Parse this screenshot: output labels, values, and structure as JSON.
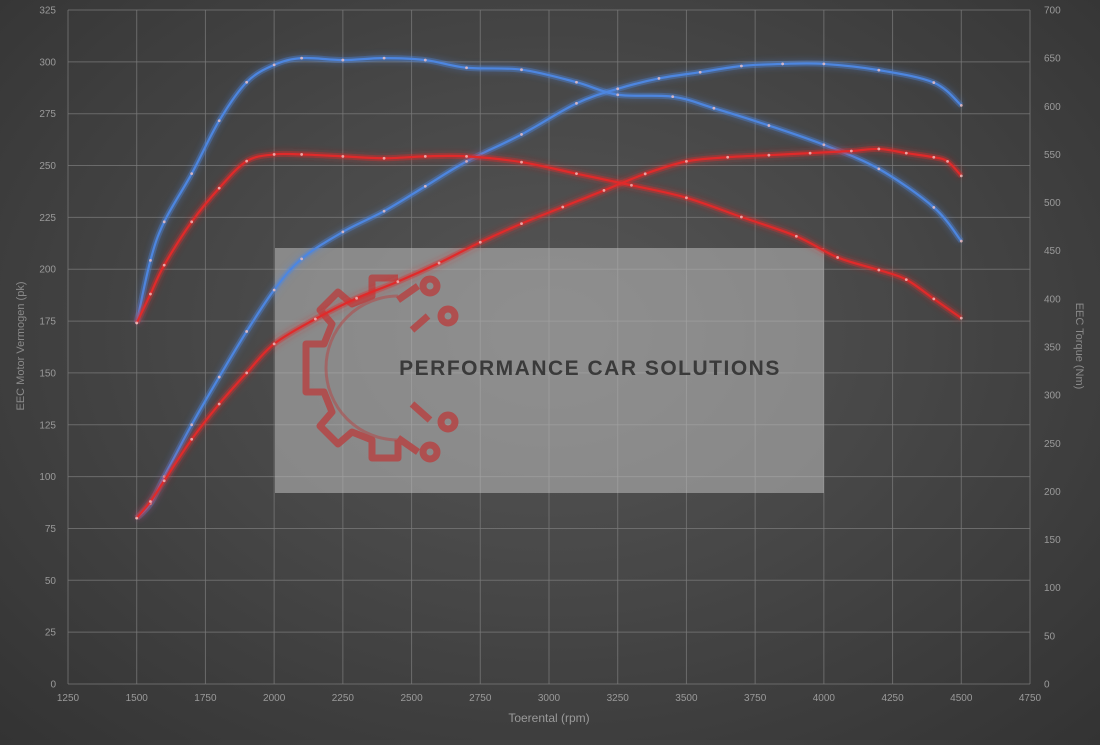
{
  "watermark": {
    "text": "PERFORMANCE CAR SOLUTIONS",
    "logo": "gear-circuit-logo"
  },
  "colors": {
    "blue": "#4d86e0",
    "red": "#e02a2a",
    "grid": "#7a7a7a",
    "axis_text": "#9a9a9a"
  },
  "chart_data": {
    "type": "line",
    "xlabel": "Toerental (rpm)",
    "ylabel": "EEC Motor Vermogen (pk)",
    "y2label": "EEC Torque (Nm)",
    "xlim": [
      1250,
      4750
    ],
    "ylim": [
      0,
      325
    ],
    "y2lim": [
      0,
      700
    ],
    "xticks": [
      1250,
      1500,
      1750,
      2000,
      2250,
      2500,
      2750,
      3000,
      3250,
      3500,
      3750,
      4000,
      4250,
      4500,
      4750
    ],
    "yticks": [
      0,
      25,
      50,
      75,
      100,
      125,
      150,
      175,
      200,
      225,
      250,
      275,
      300,
      325
    ],
    "y2ticks": [
      0,
      50,
      100,
      150,
      200,
      250,
      300,
      350,
      400,
      450,
      500,
      550,
      600,
      650,
      700
    ],
    "grid": true,
    "series": [
      {
        "color": "blue",
        "axis": "y2",
        "x": [
          1500,
          1550,
          1600,
          1700,
          1800,
          1900,
          2000,
          2100,
          2250,
          2400,
          2550,
          2700,
          2900,
          3100,
          3250,
          3450,
          3600,
          3800,
          4000,
          4200,
          4400,
          4500
        ],
        "y": [
          375,
          440,
          480,
          530,
          585,
          625,
          643,
          650,
          648,
          650,
          648,
          640,
          638,
          625,
          612,
          610,
          598,
          580,
          560,
          535,
          495,
          460
        ]
      },
      {
        "color": "blue",
        "axis": "y",
        "x": [
          1500,
          1550,
          1600,
          1700,
          1800,
          1900,
          2000,
          2100,
          2250,
          2400,
          2550,
          2700,
          2900,
          3100,
          3250,
          3400,
          3550,
          3700,
          3850,
          4000,
          4200,
          4400,
          4500
        ],
        "y": [
          80,
          87,
          100,
          125,
          148,
          170,
          190,
          205,
          218,
          228,
          240,
          252,
          265,
          280,
          287,
          292,
          295,
          298,
          299,
          299,
          296,
          290,
          279
        ]
      },
      {
        "color": "red",
        "axis": "y2",
        "x": [
          1500,
          1550,
          1600,
          1700,
          1800,
          1900,
          2000,
          2100,
          2250,
          2400,
          2550,
          2700,
          2900,
          3100,
          3300,
          3500,
          3700,
          3900,
          4050,
          4200,
          4300,
          4400,
          4500
        ],
        "y": [
          375,
          405,
          435,
          480,
          515,
          543,
          550,
          550,
          548,
          546,
          548,
          548,
          542,
          530,
          518,
          505,
          485,
          465,
          443,
          430,
          420,
          400,
          380
        ]
      },
      {
        "color": "red",
        "axis": "y",
        "x": [
          1500,
          1550,
          1600,
          1700,
          1800,
          1900,
          2000,
          2150,
          2300,
          2450,
          2600,
          2750,
          2900,
          3050,
          3200,
          3350,
          3500,
          3650,
          3800,
          3950,
          4100,
          4200,
          4300,
          4400,
          4450,
          4500
        ],
        "y": [
          80,
          88,
          98,
          118,
          135,
          150,
          164,
          176,
          186,
          194,
          203,
          213,
          222,
          230,
          238,
          246,
          252,
          254,
          255,
          256,
          257,
          258,
          256,
          254,
          252,
          245
        ]
      }
    ]
  }
}
